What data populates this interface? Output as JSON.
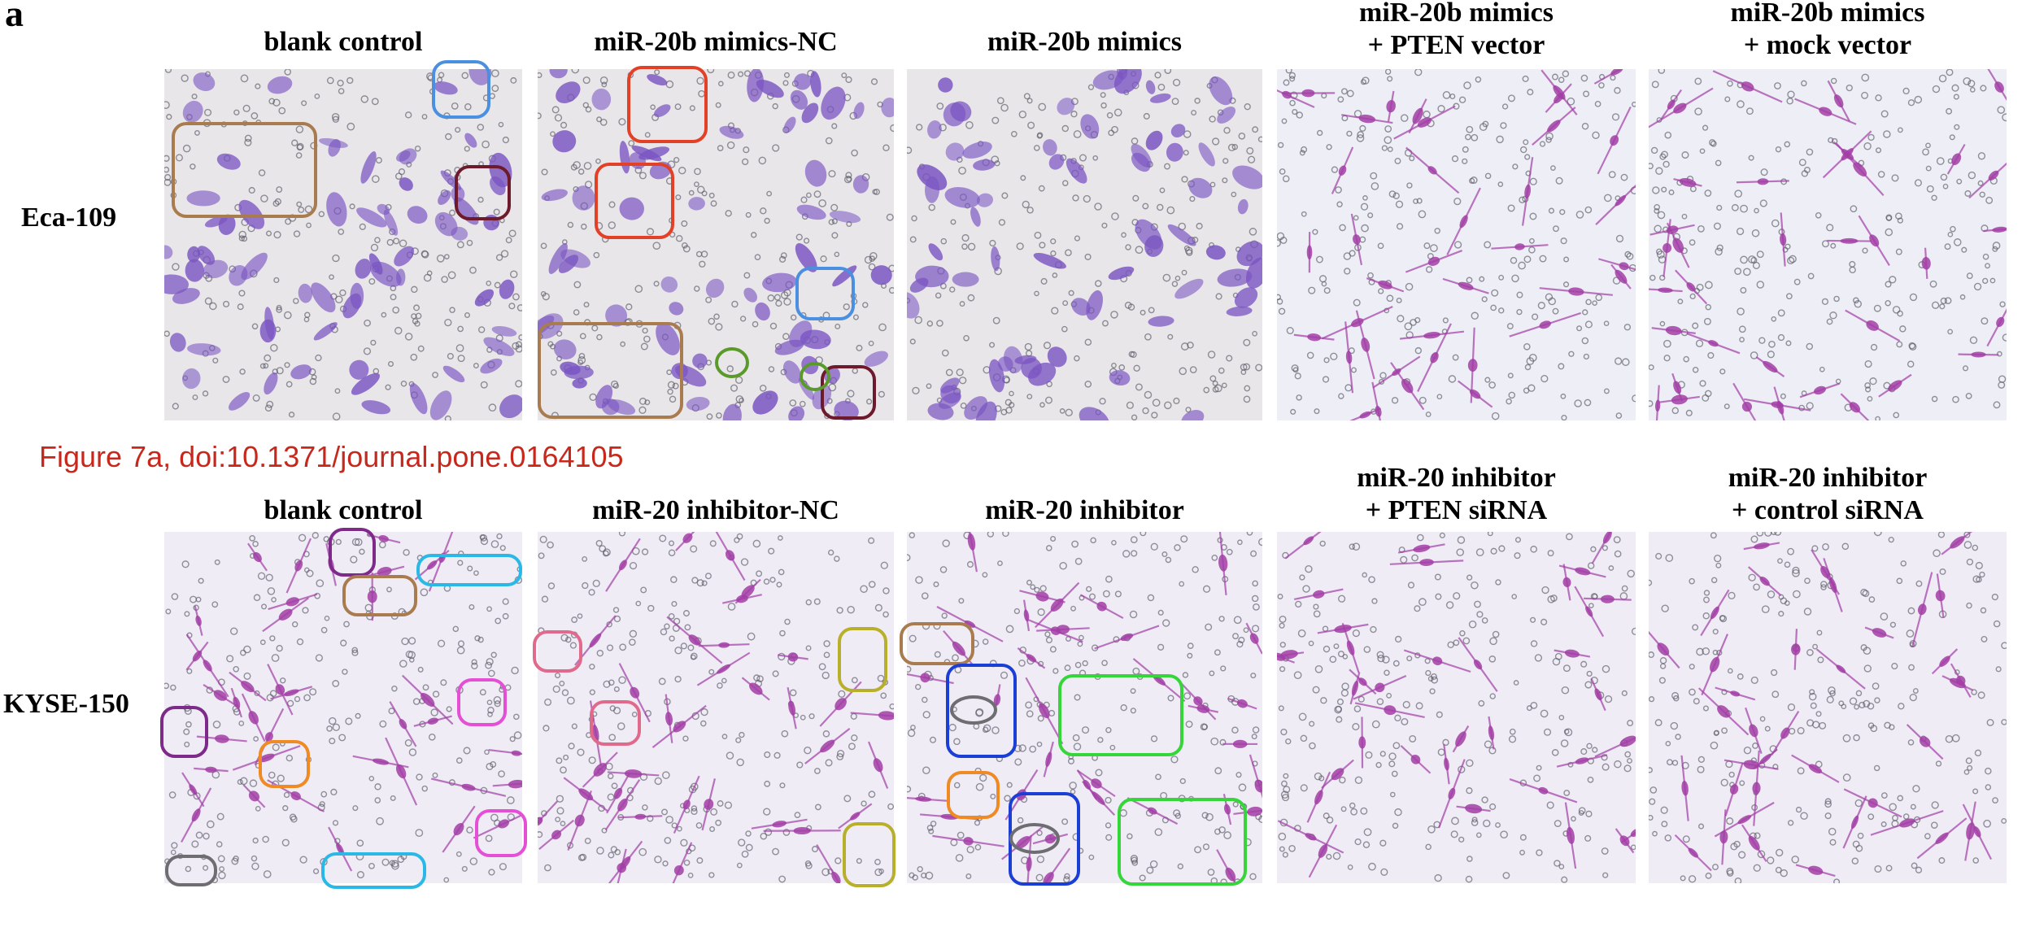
{
  "figure": {
    "panel_letter": "a",
    "caption": "Figure 7a, doi:10.1371/journal.pone.0164105"
  },
  "rows": [
    {
      "label": "Eca-109",
      "columns": [
        {
          "title": [
            "blank control"
          ]
        },
        {
          "title": [
            "miR-20b mimics-NC"
          ]
        },
        {
          "title": [
            "miR-20b mimics"
          ]
        },
        {
          "title": [
            "miR-20b mimics",
            "+ PTEN vector"
          ]
        },
        {
          "title": [
            "miR-20b mimics",
            "+ mock vector"
          ]
        }
      ]
    },
    {
      "label": "KYSE-150",
      "columns": [
        {
          "title": [
            "blank control"
          ]
        },
        {
          "title": [
            "miR-20 inhibitor-NC"
          ]
        },
        {
          "title": [
            "miR-20 inhibitor"
          ]
        },
        {
          "title": [
            "miR-20 inhibitor",
            "+ PTEN siRNA"
          ]
        },
        {
          "title": [
            "miR-20 inhibitor",
            "+ control siRNA"
          ]
        }
      ]
    }
  ],
  "colors": {
    "bg_row1": "#e9e6ea",
    "bg_row2": "#efecf6",
    "bg_row1_light": "#eeeef6",
    "cell_blob": "#7a55c2",
    "cell_magenta": "#a23ea6",
    "dot": "#5b5a66",
    "caption_red": "#c8281c",
    "box_brown": "#a97c4f",
    "box_blue": "#4a8fe0",
    "box_darkred": "#6e1a2d",
    "box_red": "#e24027",
    "box_green": "#5a9a2a",
    "box_purple": "#7d2a8a",
    "box_cyan": "#2ab8e6",
    "box_orange": "#f08a22",
    "box_pink": "#e44fd6",
    "box_gray": "#6e6e72",
    "box_rose": "#e06a8c",
    "box_olive": "#b8b02a",
    "box_navy": "#1b3fd4",
    "box_lime": "#36d63a"
  }
}
